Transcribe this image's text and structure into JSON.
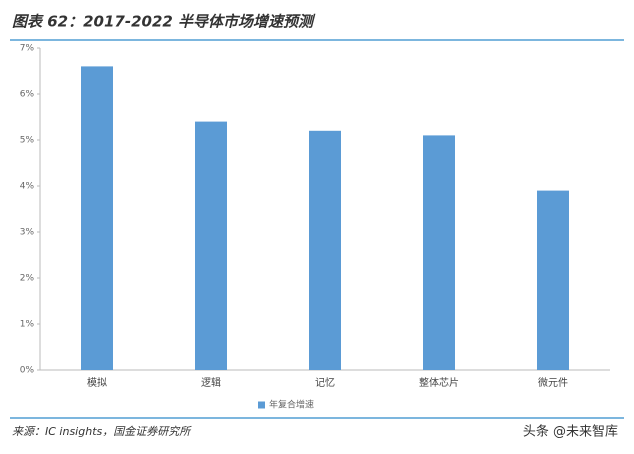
{
  "chart_data": {
    "type": "bar",
    "title": "图表 62：2017-2022 半导体市场增速预测",
    "categories": [
      "模拟",
      "逻辑",
      "记忆",
      "整体芯片",
      "微元件"
    ],
    "series": [
      {
        "name": "年复合增速",
        "color": "#5b9bd5",
        "values": [
          6.6,
          5.4,
          5.2,
          5.1,
          3.9
        ]
      }
    ],
    "ylim": [
      0,
      7
    ],
    "yticks": [
      {
        "value": 0,
        "label": "0%"
      },
      {
        "value": 1,
        "label": "1%"
      },
      {
        "value": 2,
        "label": "2%"
      },
      {
        "value": 3,
        "label": "3%"
      },
      {
        "value": 4,
        "label": "4%"
      },
      {
        "value": 5,
        "label": "5%"
      },
      {
        "value": 6,
        "label": "6%"
      },
      {
        "value": 7,
        "label": "7%"
      }
    ],
    "grid": false,
    "legend": "bottom",
    "source": "来源：IC insights，国金证券研究所",
    "watermark": "头条 @未来智库"
  }
}
